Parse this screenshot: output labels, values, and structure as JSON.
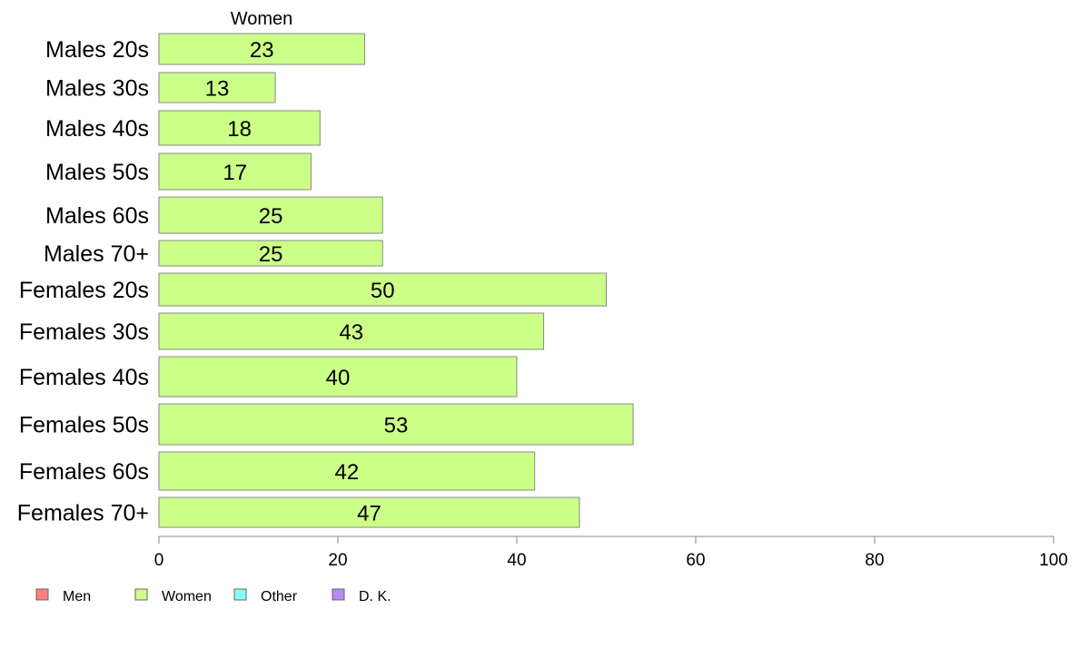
{
  "chart_data": {
    "type": "bar",
    "orientation": "horizontal",
    "title": "",
    "column_title": "Women",
    "xlabel": "",
    "ylabel": "",
    "categories": [
      "Males 20s",
      "Males 30s",
      "Males 40s",
      "Males 50s",
      "Males 60s",
      "Males 70+",
      "Females 20s",
      "Females 30s",
      "Females 40s",
      "Females 50s",
      "Females 60s",
      "Females 70+"
    ],
    "series": [
      {
        "name": "Women",
        "color": "#ccff88",
        "values": [
          23,
          13,
          18,
          17,
          25,
          25,
          50,
          43,
          40,
          53,
          42,
          47
        ]
      }
    ],
    "data_labels": [
      "23",
      "13",
      "18",
      "17",
      "25",
      "25",
      "50",
      "43",
      "40",
      "53",
      "42",
      "47"
    ],
    "xlim": [
      0,
      100
    ],
    "xticks": [
      "0",
      "20",
      "40",
      "60",
      "80",
      "100"
    ],
    "grid": false,
    "legend": {
      "placement": "bottom-left",
      "items": [
        {
          "label": "Men",
          "color": "#ff8080"
        },
        {
          "label": "Women",
          "color": "#ccff88"
        },
        {
          "label": "Other",
          "color": "#80ffff"
        },
        {
          "label": "D. K.",
          "color": "#bb88ff"
        }
      ]
    },
    "colors": {
      "bar_stroke": "#888888",
      "axis": "#888888"
    }
  }
}
